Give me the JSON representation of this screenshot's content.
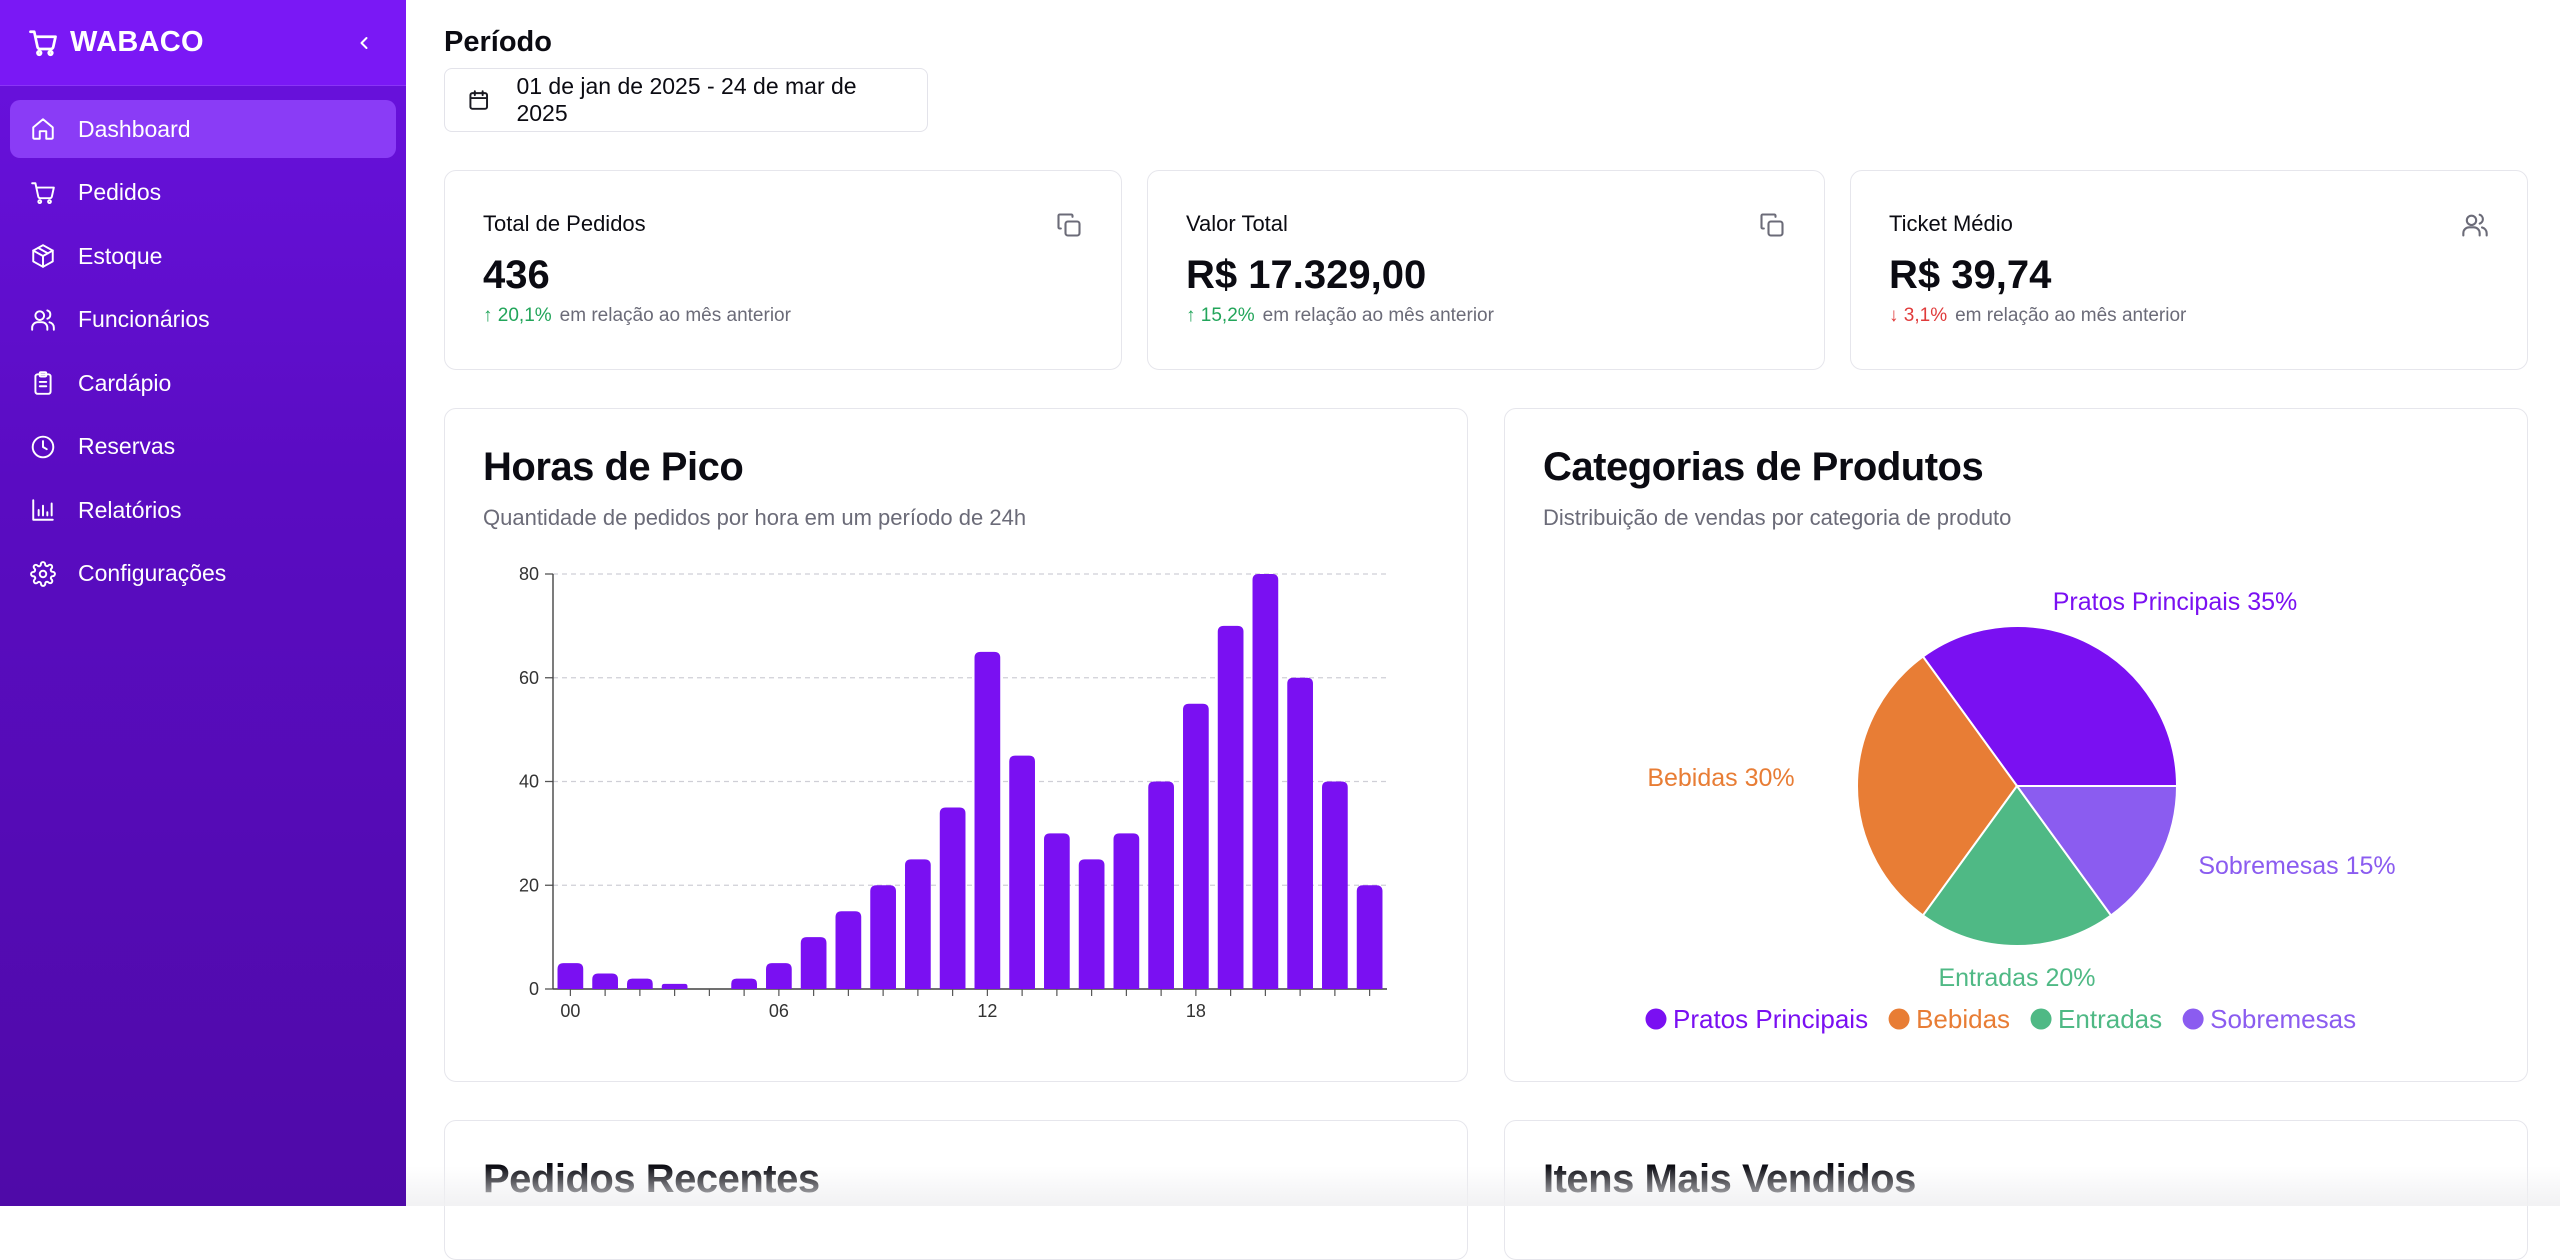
{
  "sidebar": {
    "brand": "WABACO",
    "items": [
      {
        "label": "Dashboard",
        "icon": "home-icon",
        "active": true
      },
      {
        "label": "Pedidos",
        "icon": "cart-icon"
      },
      {
        "label": "Estoque",
        "icon": "box-icon"
      },
      {
        "label": "Funcionários",
        "icon": "users-icon"
      },
      {
        "label": "Cardápio",
        "icon": "clipboard-icon"
      },
      {
        "label": "Reservas",
        "icon": "clock-icon"
      },
      {
        "label": "Relatórios",
        "icon": "bar-chart-icon"
      },
      {
        "label": "Configurações",
        "icon": "gear-icon"
      }
    ]
  },
  "period": {
    "label": "Período",
    "range": "01 de jan de 2025 - 24 de mar de 2025"
  },
  "stats": [
    {
      "title": "Total de Pedidos",
      "value": "436",
      "change": "20,1%",
      "direction": "up",
      "note": "em relação ao mês anterior",
      "icon": "copy-icon"
    },
    {
      "title": "Valor Total",
      "value": "R$ 17.329,00",
      "change": "15,2%",
      "direction": "up",
      "note": "em relação ao mês anterior",
      "icon": "copy-icon"
    },
    {
      "title": "Ticket Médio",
      "value": "R$ 39,74",
      "change": "3,1%",
      "direction": "down",
      "note": "em relação ao mês anterior",
      "icon": "users-icon"
    }
  ],
  "colors": {
    "accent": "#7a10f2",
    "up": "#22a55a",
    "down": "#e03b3b"
  },
  "chart_data": [
    {
      "type": "bar",
      "title": "Horas de Pico",
      "subtitle": "Quantidade de pedidos por hora em um período de 24h",
      "x": [
        0,
        1,
        2,
        3,
        4,
        5,
        6,
        7,
        8,
        9,
        10,
        11,
        12,
        13,
        14,
        15,
        16,
        17,
        18,
        19,
        20,
        21,
        22,
        23
      ],
      "values": [
        5,
        3,
        2,
        1,
        0,
        2,
        5,
        10,
        15,
        20,
        25,
        35,
        65,
        45,
        30,
        25,
        30,
        40,
        55,
        70,
        80,
        60,
        40,
        20
      ],
      "xticks": [
        "00",
        "06",
        "12",
        "18"
      ],
      "ylim": [
        0,
        80
      ],
      "yticks": [
        0,
        20,
        40,
        60,
        80
      ],
      "grid": true,
      "color": "#7a10f2"
    },
    {
      "type": "pie",
      "title": "Categorias de Produtos",
      "subtitle": "Distribuição de vendas por categoria de produto",
      "slices": [
        {
          "label": "Pratos Principais",
          "value": 35,
          "color": "#7a10f2",
          "text": "Pratos Principais 35%"
        },
        {
          "label": "Bebidas",
          "value": 30,
          "color": "#e87d35",
          "text": "Bebidas 30%"
        },
        {
          "label": "Entradas",
          "value": 20,
          "color": "#4fb985",
          "text": "Entradas 20%"
        },
        {
          "label": "Sobremesas",
          "value": 15,
          "color": "#8b5cf0",
          "text": "Sobremesas 15%"
        }
      ],
      "legend_position": "bottom"
    }
  ],
  "sections": {
    "recent_orders": "Pedidos Recentes",
    "top_items": "Itens Mais Vendidos"
  }
}
